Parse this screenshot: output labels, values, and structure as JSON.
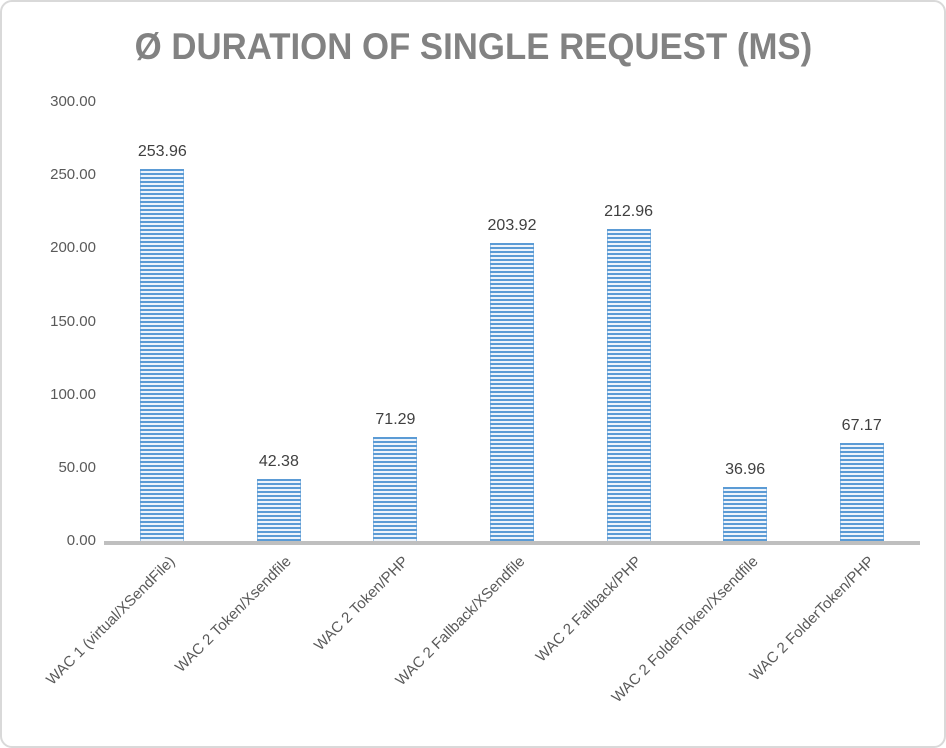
{
  "chart_data": {
    "type": "bar",
    "title": "Ø DURATION OF SINGLE REQUEST (MS)",
    "categories": [
      "WAC 1 (virtual/XSendFile)",
      "WAC 2 Token/Xsendfile",
      "WAC 2 Token/PHP",
      "WAC 2 Fallback/XSendfile",
      "WAC 2 Fallback/PHP",
      "WAC 2 FolderToken/Xsendfile",
      "WAC 2 FolderToken/PHP"
    ],
    "values": [
      253.96,
      42.38,
      71.29,
      203.92,
      212.96,
      36.96,
      67.17
    ],
    "data_labels": [
      "253.96",
      "42.38",
      "71.29",
      "203.92",
      "212.96",
      "36.96",
      "67.17"
    ],
    "y_ticks": [
      "300.00",
      "250.00",
      "200.00",
      "150.00",
      "100.00",
      "50.00",
      "0.00"
    ],
    "ylim": [
      0,
      300
    ],
    "xlabel": "",
    "ylabel": "",
    "grid": false,
    "legend": false,
    "bar_style": {
      "pattern": "light-horizontal-stripes",
      "stripe_color": "#5B9BD5",
      "stripe_background": "#EEF4FB"
    },
    "colors": {
      "title": "#828282",
      "tick_label": "#595959",
      "data_label": "#404040",
      "category_label": "#595959",
      "axis_line": "#BFBFBF",
      "frame_border": "#D9D9D9",
      "background": "#FFFFFF"
    }
  }
}
